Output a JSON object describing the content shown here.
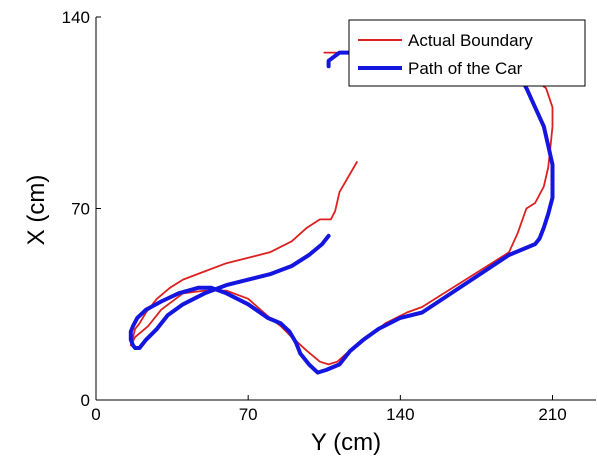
{
  "chart_data": {
    "type": "line",
    "title": "",
    "xlabel": "Y (cm)",
    "ylabel": "X (cm)",
    "xlim": [
      0,
      230
    ],
    "ylim": [
      0,
      140
    ],
    "xticks": [
      0,
      70,
      140,
      210
    ],
    "yticks": [
      0,
      70,
      140
    ],
    "grid": false,
    "legend": {
      "placement": "top-right"
    },
    "series": [
      {
        "name": "Actual Boundary",
        "color": "#dd2020",
        "x": [
          105,
          150,
          190,
          200,
          207,
          210,
          210,
          209,
          208,
          206,
          202,
          198,
          194,
          190,
          150,
          143,
          133,
          127,
          118,
          111,
          107,
          103,
          97,
          90,
          85,
          80,
          70,
          60,
          50,
          40,
          30,
          24,
          18,
          16,
          16,
          17,
          18,
          20,
          23,
          28,
          34,
          40,
          50,
          60,
          80,
          90,
          97,
          103,
          106,
          108,
          108,
          110,
          112,
          120
        ],
        "y": [
          127,
          127,
          122,
          118,
          114,
          107,
          100,
          92,
          85,
          78,
          72,
          70,
          61,
          54,
          34,
          32,
          28,
          24,
          19,
          14,
          13,
          14,
          18,
          23,
          27,
          30,
          37,
          40,
          40,
          39,
          33,
          27,
          23,
          20,
          20,
          23,
          26,
          28,
          32,
          37,
          41,
          44,
          47,
          50,
          54,
          58,
          63,
          66,
          66,
          66,
          66,
          69,
          76,
          87
        ]
      },
      {
        "name": "Path of the Car",
        "color": "#1515e0",
        "x": [
          107,
          107,
          112,
          148,
          190,
          193,
          198,
          202,
          206,
          208,
          210,
          210,
          210,
          208,
          206,
          204,
          202,
          190,
          150,
          140,
          130,
          123,
          117,
          112,
          106,
          102,
          98,
          94,
          92,
          89,
          85,
          79,
          70,
          60,
          53,
          47,
          38,
          30,
          23,
          19,
          17,
          16,
          16,
          17,
          18,
          20,
          23,
          28,
          33,
          40,
          50,
          60,
          80,
          90,
          98,
          104,
          107
        ],
        "y": [
          122,
          124,
          127,
          127,
          125,
          121,
          114,
          107,
          100,
          93,
          86,
          80,
          74,
          68,
          63,
          59,
          57,
          53,
          32,
          30,
          26,
          22,
          18,
          13,
          11,
          10,
          13,
          17,
          21,
          25,
          28,
          30,
          35,
          39,
          41,
          41,
          39,
          36,
          33,
          30,
          27,
          25,
          22,
          20,
          19,
          19,
          22,
          26,
          31,
          35,
          39,
          42,
          46,
          49,
          53,
          57,
          60
        ]
      }
    ]
  }
}
